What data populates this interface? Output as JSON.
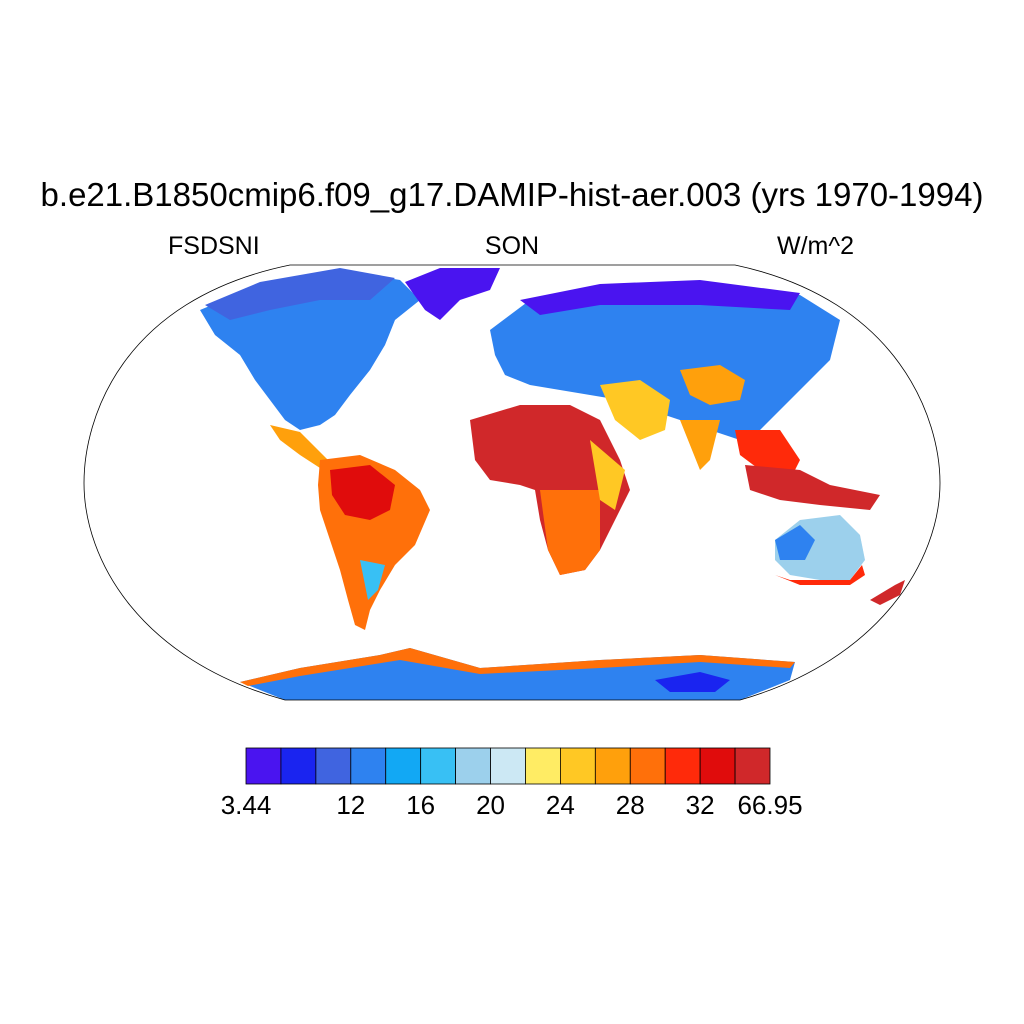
{
  "title": "b.e21.B1850cmip6.f09_g17.DAMIP-hist-aer.003 (yrs 1970-1994)",
  "left_label": "FSDSNI",
  "center_label": "SON",
  "right_label": "W/m^2",
  "colorbar": {
    "colors": [
      "#4a14f0",
      "#1a24f0",
      "#4064e0",
      "#2e82f0",
      "#12a8f4",
      "#38c0f4",
      "#9cd0ec",
      "#cce8f4",
      "#ffec64",
      "#ffc824",
      "#ffa00c",
      "#ff700a",
      "#ff2a0a",
      "#e00c0c",
      "#d0282a"
    ],
    "tick_labels": [
      "3.44",
      "12",
      "16",
      "20",
      "24",
      "28",
      "32",
      "66.95"
    ],
    "tick_box_index": [
      0,
      3,
      5,
      7,
      9,
      11,
      13,
      15
    ]
  }
}
